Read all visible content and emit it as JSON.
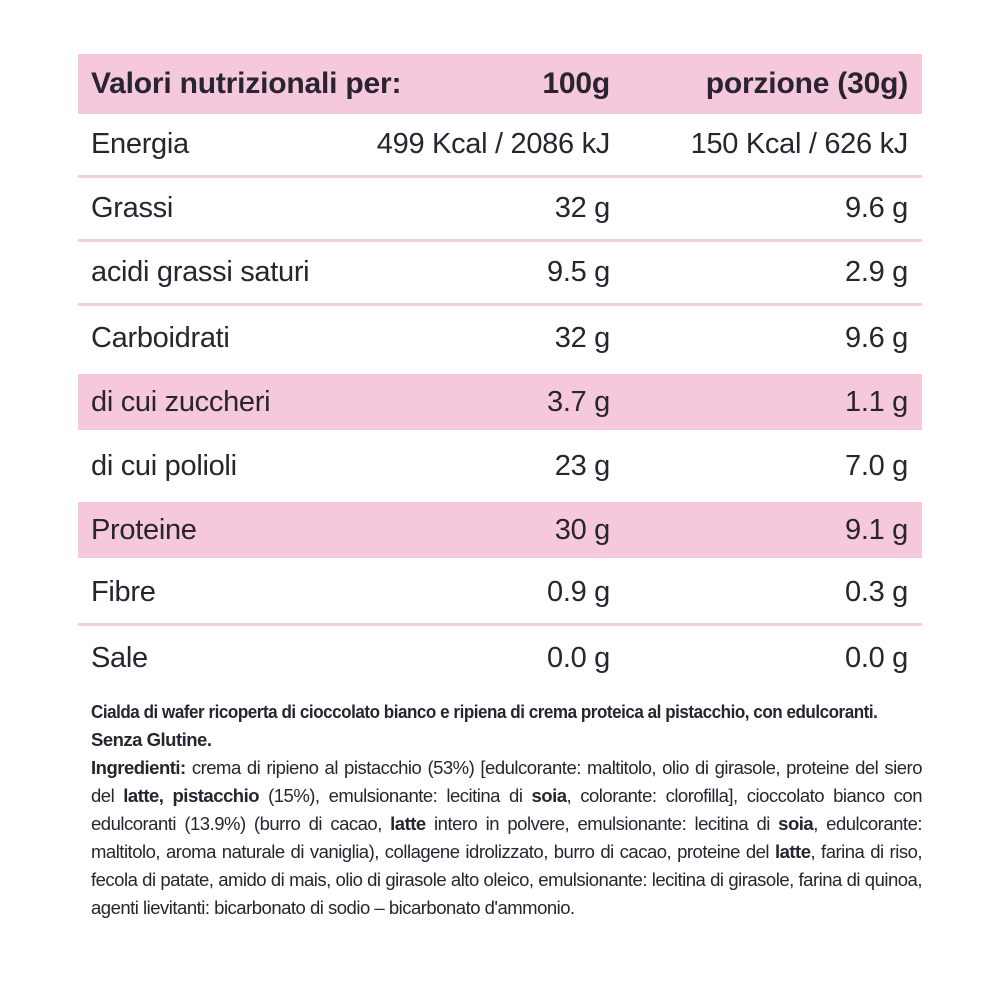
{
  "colors": {
    "accent_pink": "#f6c8dc",
    "divider_pink": "#f2cedf",
    "text": "#282430"
  },
  "table": {
    "header": {
      "label": "Valori nutrizionali per:",
      "col_100g": "100g",
      "col_portion": "porzione (30g)"
    },
    "rows": [
      {
        "label": "Energia",
        "per_100g": "499 Kcal / 2086 kJ",
        "per_portion": "150 Kcal / 626 kJ",
        "highlighted": false
      },
      {
        "label": "Grassi",
        "per_100g": "32 g",
        "per_portion": "9.6 g",
        "highlighted": false
      },
      {
        "label": "acidi grassi saturi",
        "per_100g": "9.5 g",
        "per_portion": "2.9 g",
        "highlighted": false
      },
      {
        "label": "Carboidrati",
        "per_100g": "32 g",
        "per_portion": "9.6 g",
        "highlighted": false
      },
      {
        "label": "di cui zuccheri",
        "per_100g": "3.7 g",
        "per_portion": "1.1 g",
        "highlighted": true
      },
      {
        "label": "di cui polioli",
        "per_100g": "23 g",
        "per_portion": "7.0 g",
        "highlighted": false
      },
      {
        "label": "Proteine",
        "per_100g": "30 g",
        "per_portion": "9.1 g",
        "highlighted": true
      },
      {
        "label": "Fibre",
        "per_100g": "0.9 g",
        "per_portion": "0.3 g",
        "highlighted": false
      },
      {
        "label": "Sale",
        "per_100g": "0.0 g",
        "per_portion": "0.0 g",
        "highlighted": false
      }
    ]
  },
  "footer": {
    "description_line1": "Cialda di wafer ricoperta di cioccolato bianco e ripiena di crema proteica al pistacchio, con edulcoranti.",
    "description_line2": "Senza Glutine.",
    "ingredients_segments": [
      {
        "bold": true,
        "text": "Ingredienti:"
      },
      {
        "bold": false,
        "text": " crema di ripieno al pistacchio (53%) [edulcorante: maltitolo, olio di girasole, proteine del siero del "
      },
      {
        "bold": true,
        "text": "latte, pistacchio"
      },
      {
        "bold": false,
        "text": " (15%), emulsionante: lecitina di "
      },
      {
        "bold": true,
        "text": "soia"
      },
      {
        "bold": false,
        "text": ", colorante: clorofilla], cioccolato bianco con edulcoranti (13.9%) (burro di cacao, "
      },
      {
        "bold": true,
        "text": "latte"
      },
      {
        "bold": false,
        "text": " intero in polvere, emulsionante: lecitina di "
      },
      {
        "bold": true,
        "text": "soia"
      },
      {
        "bold": false,
        "text": ", edulcorante: maltitolo, aroma naturale di vaniglia), collagene idrolizzato, burro di cacao, proteine del "
      },
      {
        "bold": true,
        "text": "latte"
      },
      {
        "bold": false,
        "text": ", farina di riso, fecola di patate, amido di mais, olio di girasole alto oleico, emulsionante: lecitina di girasole, farina di quinoa, agenti lievitanti: bicarbonato di sodio – bicarbonato d'ammonio."
      }
    ]
  }
}
